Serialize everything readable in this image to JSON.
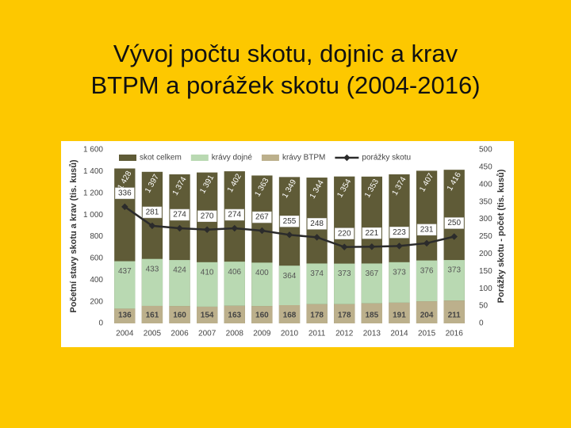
{
  "chart_data": {
    "type": "bar",
    "title": [
      "Vývoj počtu skotu, dojnic a krav",
      "BTPM a porážek skotu (2004-2016)"
    ],
    "y_label": "Početní stavy skotu a krav (tis. kusů)",
    "y2_label": "Porážky skotu - počet (tis. kusů)",
    "categories": [
      "2004",
      "2005",
      "2006",
      "2007",
      "2008",
      "2009",
      "2010",
      "2011",
      "2012",
      "2013",
      "2014",
      "2015",
      "2016"
    ],
    "series": [
      {
        "name": "skot celkem",
        "type": "bar",
        "color": "#5f5b37",
        "values": [
          1428,
          1397,
          1374,
          1391,
          1402,
          1363,
          1349,
          1344,
          1354,
          1353,
          1374,
          1407,
          1416
        ],
        "value_labels": [
          "1 428",
          "1 397",
          "1 374",
          "1 391",
          "1 402",
          "1 363",
          "1 349",
          "1 344",
          "1 354",
          "1 353",
          "1 374",
          "1 407",
          "1 416"
        ]
      },
      {
        "name": "krávy dojné",
        "type": "bar",
        "color": "#b9d9b2",
        "values": [
          437,
          433,
          424,
          410,
          406,
          400,
          364,
          374,
          373,
          367,
          373,
          376,
          373
        ]
      },
      {
        "name": "krávy BTPM",
        "type": "bar",
        "color": "#bcb08c",
        "values": [
          136,
          161,
          160,
          154,
          163,
          160,
          168,
          178,
          178,
          185,
          191,
          204,
          211
        ]
      },
      {
        "name": "porážky skotu",
        "type": "line",
        "axis": "y2",
        "color": "#2b2b2b",
        "values": [
          336,
          281,
          274,
          270,
          274,
          267,
          255,
          248,
          220,
          221,
          223,
          231,
          250
        ]
      }
    ],
    "ylim": [
      0,
      1600
    ],
    "yticks": [
      0,
      200,
      400,
      600,
      800,
      {
        "value": 1000,
        "label": "1 000"
      },
      {
        "value": 1200,
        "label": "1 200"
      },
      {
        "value": 1400,
        "label": "1 400"
      },
      {
        "value": 1600,
        "label": "1 600"
      }
    ],
    "y2lim": [
      0,
      500
    ],
    "y2ticks": [
      0,
      50,
      100,
      150,
      200,
      250,
      300,
      350,
      400,
      450,
      500
    ],
    "legend": "top"
  }
}
